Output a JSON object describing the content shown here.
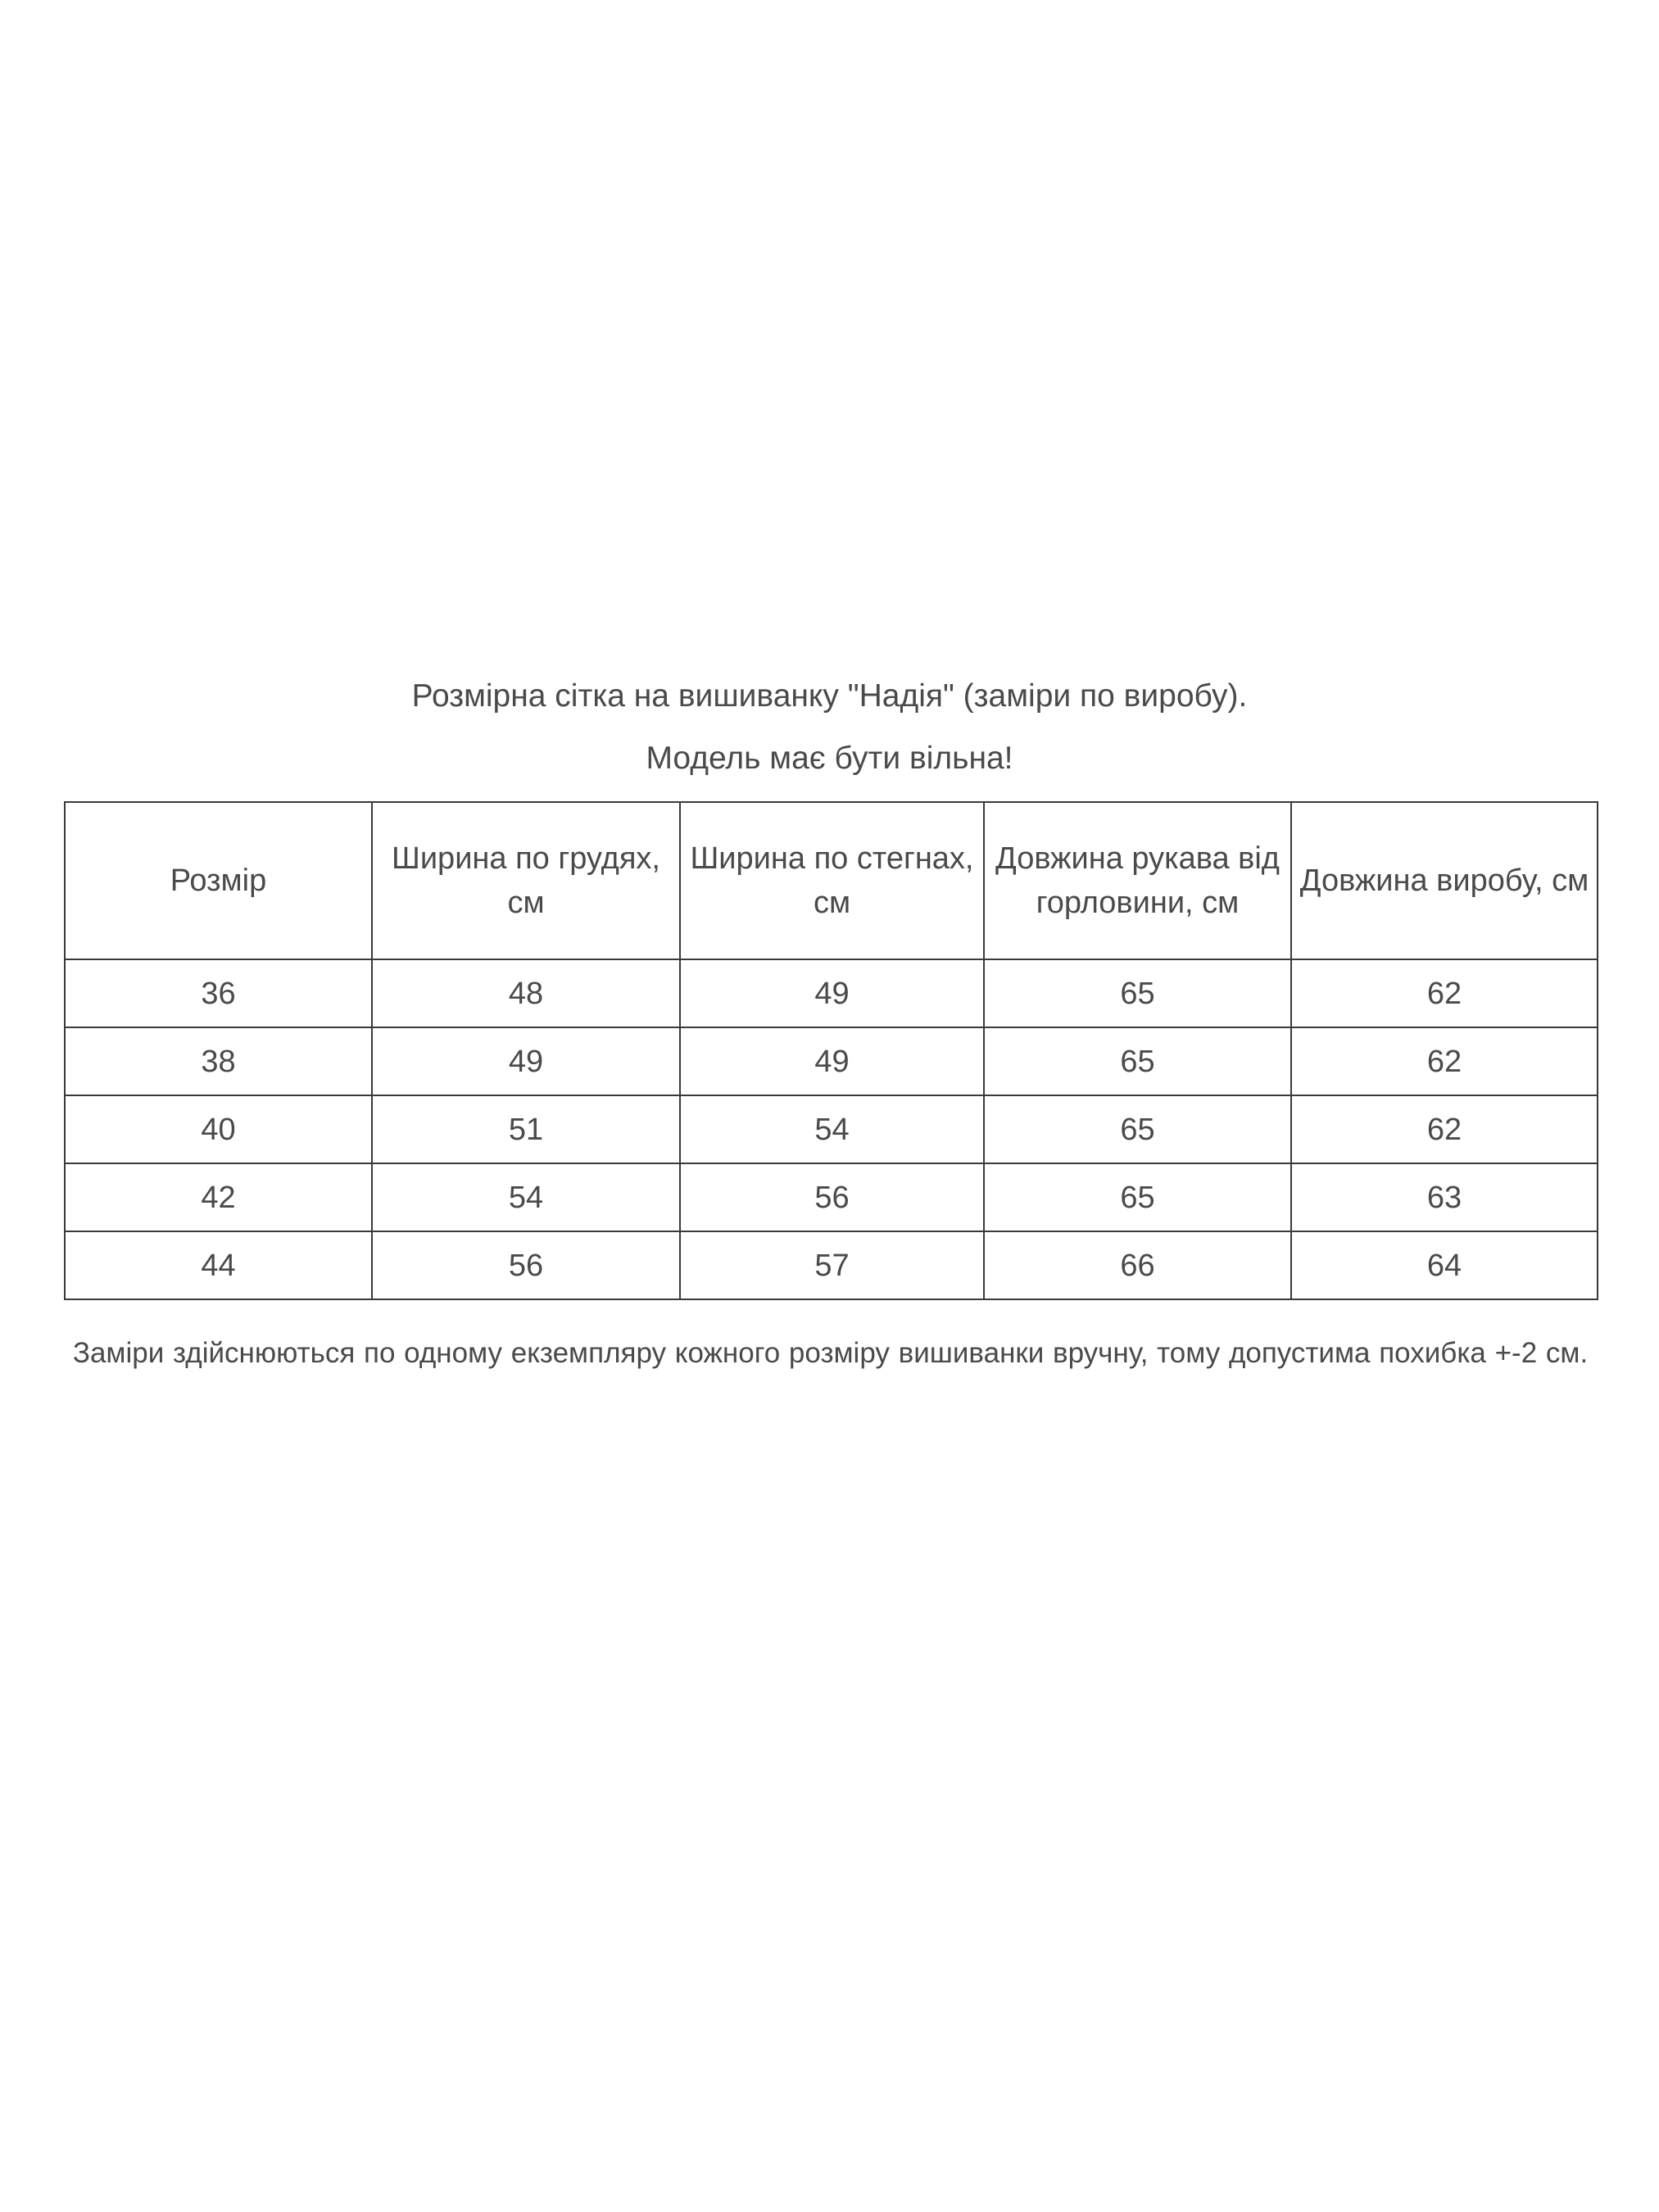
{
  "title": "Розмірна сітка на вишиванку \"Надія\" (заміри по виробу).",
  "subtitle": "Модель має бути вільна!",
  "table": {
    "headers": [
      "Розмір",
      "Ширина по грудях, см",
      "Ширина по стегнах, см",
      "Довжина рукава від горловини, см",
      "Довжина виробу, см"
    ],
    "rows": [
      [
        "36",
        "48",
        "49",
        "65",
        "62"
      ],
      [
        "38",
        "49",
        "49",
        "65",
        "62"
      ],
      [
        "40",
        "51",
        "54",
        "65",
        "62"
      ],
      [
        "42",
        "54",
        "56",
        "65",
        "63"
      ],
      [
        "44",
        "56",
        "57",
        "66",
        "64"
      ]
    ]
  },
  "note": "Заміри здійснюються  по одному екземпляру кожного розміру вишиванки вручну, тому допустима похибка +-2 см."
}
